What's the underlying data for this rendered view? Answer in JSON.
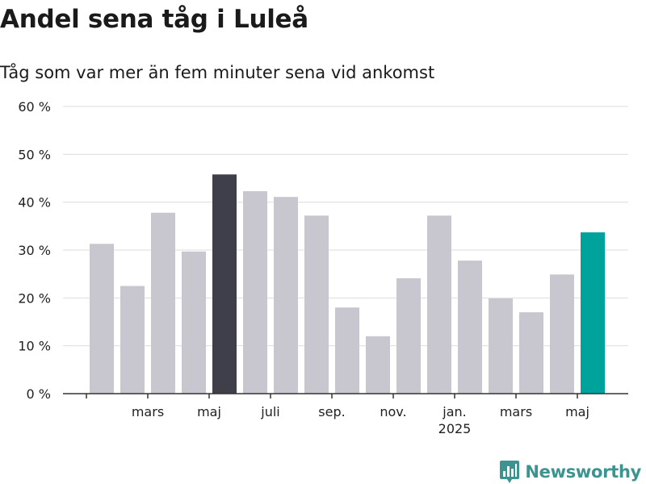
{
  "header": {
    "title": "Andel sena tåg i Luleå",
    "subtitle": "Tåg som var mer än fem minuter sena vid ankomst"
  },
  "brand": {
    "name": "Newsworthy",
    "icon": "bar-chart-badge-icon",
    "color": "#3b948f"
  },
  "colors": {
    "default": "#c8c7d0",
    "highlight_max": "#3f3e4b",
    "highlight_latest": "#00a39b",
    "grid": "#dddddd",
    "axis": "#333333"
  },
  "chart_data": {
    "type": "bar",
    "title": "Andel sena tåg i Luleå",
    "subtitle": "Tåg som var mer än fem minuter sena vid ankomst",
    "xlabel": "",
    "ylabel": "",
    "ylim": [
      0,
      60
    ],
    "yticks": [
      "0 %",
      "10 %",
      "20 %",
      "30 %",
      "40 %",
      "50 %",
      "60 %"
    ],
    "ytick_values": [
      0,
      10,
      20,
      30,
      40,
      50,
      60
    ],
    "grid": true,
    "categories": [
      "2024-02",
      "2024-03",
      "2024-04",
      "2024-05",
      "2024-06",
      "2024-07",
      "2024-08",
      "2024-09",
      "2024-10",
      "2024-11",
      "2024-12",
      "2025-01",
      "2025-02",
      "2025-03",
      "2025-04",
      "2025-05",
      "2025-06"
    ],
    "values": [
      31.3,
      22.5,
      37.8,
      29.7,
      45.8,
      42.3,
      41.1,
      37.2,
      18.0,
      12.0,
      24.1,
      37.2,
      27.8,
      19.9,
      17.0,
      24.9,
      33.7
    ],
    "xtick_labels": [
      {
        "category": "2024-03",
        "label": "mars"
      },
      {
        "category": "2024-05",
        "label": "maj"
      },
      {
        "category": "2024-07",
        "label": "juli"
      },
      {
        "category": "2024-09",
        "label": "sep."
      },
      {
        "category": "2024-11",
        "label": "nov."
      },
      {
        "category": "2025-01",
        "label": "jan.",
        "sublabel": "2025"
      },
      {
        "category": "2025-03",
        "label": "mars"
      },
      {
        "category": "2025-05",
        "label": "maj"
      }
    ],
    "highlight": {
      "2024-06": "highlight_max",
      "2025-06": "highlight_latest"
    }
  }
}
